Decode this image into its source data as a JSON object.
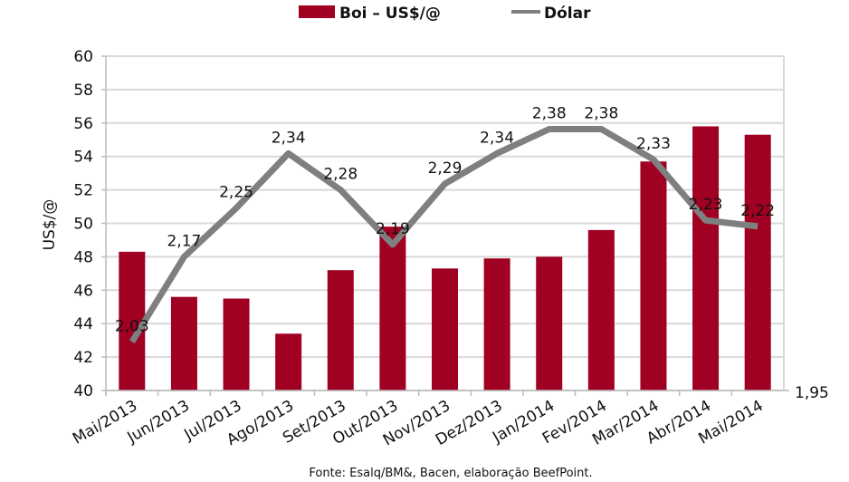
{
  "chart_data": {
    "type": "bar",
    "title": "",
    "categories": [
      "Mai/2013",
      "Jun/2013",
      "Jul/2013",
      "Ago/2013",
      "Set/2013",
      "Out/2013",
      "Nov/2013",
      "Dez/2013",
      "Jan/2014",
      "Fev/2014",
      "Mar/2014",
      "Abr/2014",
      "Mai/2014"
    ],
    "series": [
      {
        "name": "Boi – US$/@",
        "type": "bar",
        "axis": "left",
        "color": "#a00021",
        "values": [
          48.3,
          45.6,
          45.5,
          43.4,
          47.2,
          49.8,
          47.3,
          47.9,
          48.0,
          49.6,
          53.7,
          55.8,
          55.3
        ]
      },
      {
        "name": "Dólar",
        "type": "line",
        "axis": "right",
        "color": "#7f7f7f",
        "values": [
          2.03,
          2.17,
          2.25,
          2.34,
          2.28,
          2.19,
          2.29,
          2.34,
          2.38,
          2.38,
          2.33,
          2.23,
          2.22
        ],
        "data_labels": [
          "2,03",
          "2,17",
          "2,25",
          "2,34",
          "2,28",
          "2,19",
          "2,29",
          "2,34",
          "2,38",
          "2,38",
          "2,33",
          "2,23",
          "2,22"
        ]
      }
    ],
    "ylabel": "US$/@",
    "xlabel": "",
    "ylim": [
      40,
      60
    ],
    "yticks": [
      "40",
      "42",
      "44",
      "46",
      "48",
      "50",
      "52",
      "54",
      "56",
      "58",
      "60"
    ],
    "y2lim": [
      1.95,
      2.5
    ],
    "y2ticks": [
      "1,95"
    ],
    "grid": true,
    "legend_position": "top-center",
    "source": "Fonte: Esalq/BM&, Bacen, elaboração BeefPoint."
  }
}
